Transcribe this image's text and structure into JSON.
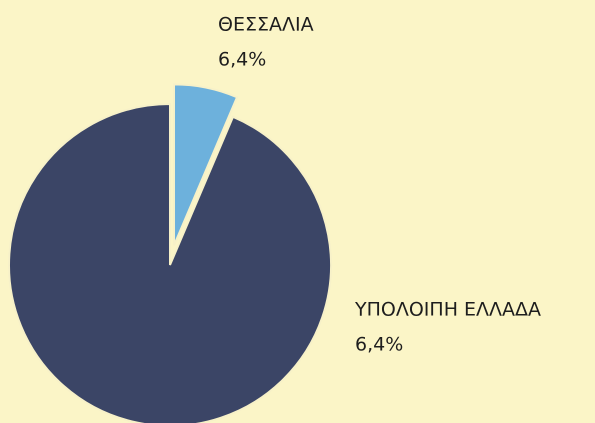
{
  "chart_data": {
    "type": "pie",
    "categories": [
      "ΘΕΣΣΑΛΙΑ",
      "ΥΠΟΛΟΙΠΗ ΕΛΛΑΔΑ"
    ],
    "values": [
      6.4,
      93.6
    ],
    "annotations": [
      "6,4%",
      "6,4%"
    ],
    "colors": [
      "#6db1dc",
      "#3b4566"
    ],
    "exploded": [
      true,
      false
    ]
  }
}
